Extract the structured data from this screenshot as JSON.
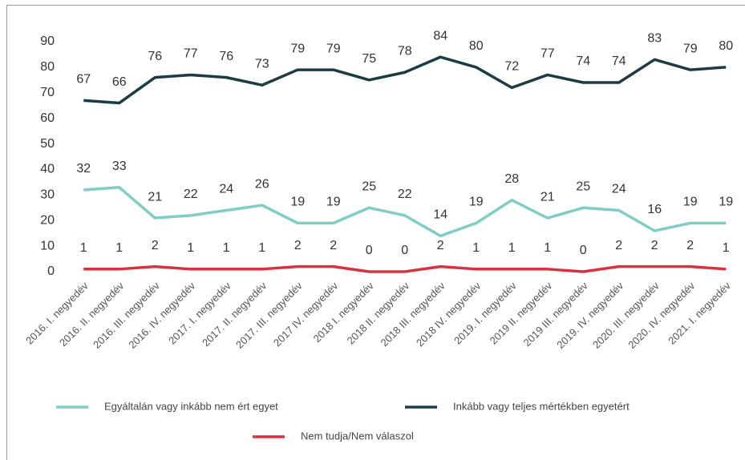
{
  "chart_data": {
    "type": "line",
    "categories": [
      "2016. I. negyedév",
      "2016. II. negyedév",
      "2016. III. negyedév",
      "2016. IV. negyedév",
      "2017. I. negyedév",
      "2017. II. negyedév",
      "2017. III. negyedév",
      "2017 IV. negyedév",
      "2018 I. negyedév",
      "2018 II. negyedév",
      "2018 III. negyedév",
      "2018 IV. negyedév",
      "2019. I. negyedév",
      "2019 II. negyedév",
      "2019 III. negyedév",
      "2019. IV. negyedév",
      "2020. III. negyedév",
      "2020. IV. negyedév",
      "2021. I. negyedév"
    ],
    "series": [
      {
        "name": "Egyáltalán vagy inkább nem ért egyet",
        "color": "#7fcdc3",
        "values": [
          32,
          33,
          21,
          22,
          24,
          26,
          19,
          19,
          25,
          22,
          14,
          19,
          28,
          21,
          25,
          24,
          16,
          19,
          19
        ]
      },
      {
        "name": "Inkább vagy teljes mértékben egyetért",
        "color": "#1c3c43",
        "values": [
          67,
          66,
          76,
          77,
          76,
          73,
          79,
          79,
          75,
          78,
          84,
          80,
          72,
          77,
          74,
          74,
          83,
          79,
          80
        ]
      },
      {
        "name": "Nem tudja/Nem válaszol",
        "color": "#d8323f",
        "values": [
          1,
          1,
          2,
          1,
          1,
          1,
          2,
          2,
          0,
          0,
          2,
          1,
          1,
          1,
          0,
          2,
          2,
          2,
          1
        ]
      }
    ],
    "ylim": [
      0,
      90
    ],
    "yticks": [
      0,
      10,
      20,
      30,
      40,
      50,
      60,
      70,
      80,
      90
    ],
    "grid": false
  }
}
